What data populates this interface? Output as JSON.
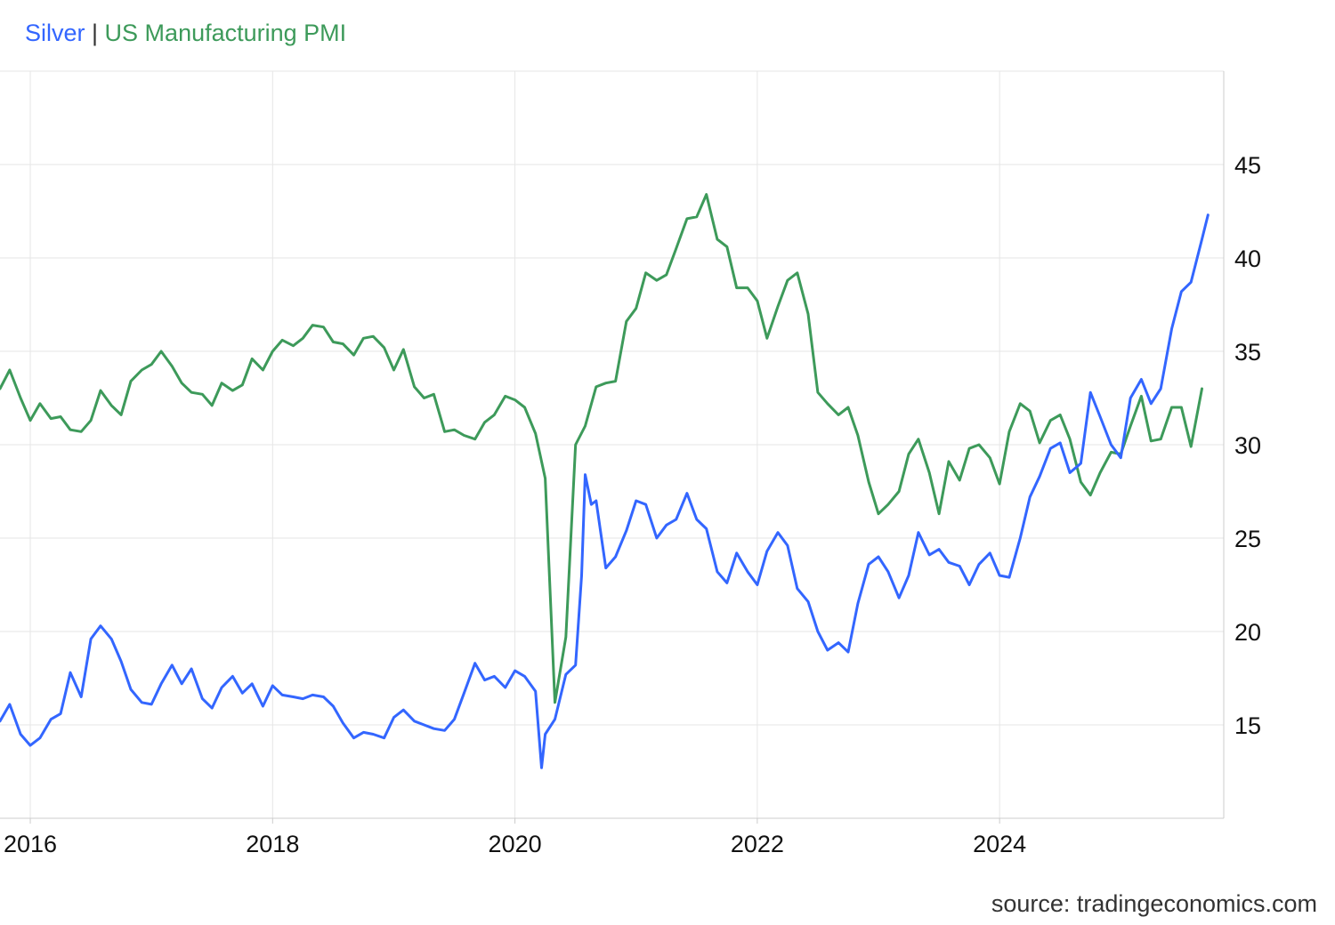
{
  "chart_data": {
    "type": "line",
    "title_parts": [
      "Silver",
      " | ",
      "US Manufacturing PMI"
    ],
    "source": "source: tradingeconomics.com",
    "x_tick_labels": [
      "2016",
      "2018",
      "2020",
      "2022",
      "2024"
    ],
    "x_tick_years": [
      2016,
      2018,
      2020,
      2022,
      2024
    ],
    "y_tick_labels": [
      "15",
      "20",
      "25",
      "30",
      "35",
      "40",
      "45"
    ],
    "y_ticks": [
      15,
      20,
      25,
      30,
      35,
      40,
      45
    ],
    "xlim": [
      2015.75,
      2025.85
    ],
    "ylim": [
      10,
      50
    ],
    "grid": true,
    "y_axis_side": "right",
    "series": [
      {
        "name": "Silver",
        "color": "#3366ff",
        "points": [
          [
            2015.75,
            15.2
          ],
          [
            2015.83,
            16.1
          ],
          [
            2015.92,
            14.5
          ],
          [
            2016.0,
            13.9
          ],
          [
            2016.08,
            14.3
          ],
          [
            2016.17,
            15.3
          ],
          [
            2016.25,
            15.6
          ],
          [
            2016.33,
            17.8
          ],
          [
            2016.42,
            16.5
          ],
          [
            2016.5,
            19.6
          ],
          [
            2016.58,
            20.3
          ],
          [
            2016.67,
            19.6
          ],
          [
            2016.75,
            18.4
          ],
          [
            2016.83,
            16.9
          ],
          [
            2016.92,
            16.2
          ],
          [
            2017.0,
            16.1
          ],
          [
            2017.08,
            17.2
          ],
          [
            2017.17,
            18.2
          ],
          [
            2017.25,
            17.2
          ],
          [
            2017.33,
            18.0
          ],
          [
            2017.42,
            16.4
          ],
          [
            2017.5,
            15.9
          ],
          [
            2017.58,
            17.0
          ],
          [
            2017.67,
            17.6
          ],
          [
            2017.75,
            16.7
          ],
          [
            2017.83,
            17.2
          ],
          [
            2017.92,
            16.0
          ],
          [
            2018.0,
            17.1
          ],
          [
            2018.08,
            16.6
          ],
          [
            2018.17,
            16.5
          ],
          [
            2018.25,
            16.4
          ],
          [
            2018.33,
            16.6
          ],
          [
            2018.42,
            16.5
          ],
          [
            2018.5,
            16.0
          ],
          [
            2018.58,
            15.1
          ],
          [
            2018.67,
            14.3
          ],
          [
            2018.75,
            14.6
          ],
          [
            2018.83,
            14.5
          ],
          [
            2018.92,
            14.3
          ],
          [
            2019.0,
            15.4
          ],
          [
            2019.08,
            15.8
          ],
          [
            2019.17,
            15.2
          ],
          [
            2019.25,
            15.0
          ],
          [
            2019.33,
            14.8
          ],
          [
            2019.42,
            14.7
          ],
          [
            2019.5,
            15.3
          ],
          [
            2019.58,
            16.7
          ],
          [
            2019.67,
            18.3
          ],
          [
            2019.75,
            17.4
          ],
          [
            2019.83,
            17.6
          ],
          [
            2019.92,
            17.0
          ],
          [
            2020.0,
            17.9
          ],
          [
            2020.08,
            17.6
          ],
          [
            2020.17,
            16.8
          ],
          [
            2020.22,
            12.7
          ],
          [
            2020.25,
            14.5
          ],
          [
            2020.33,
            15.3
          ],
          [
            2020.42,
            17.7
          ],
          [
            2020.5,
            18.2
          ],
          [
            2020.55,
            23.0
          ],
          [
            2020.58,
            28.4
          ],
          [
            2020.63,
            26.8
          ],
          [
            2020.67,
            27.0
          ],
          [
            2020.75,
            23.4
          ],
          [
            2020.83,
            24.0
          ],
          [
            2020.92,
            25.4
          ],
          [
            2021.0,
            27.0
          ],
          [
            2021.08,
            26.8
          ],
          [
            2021.17,
            25.0
          ],
          [
            2021.25,
            25.7
          ],
          [
            2021.33,
            26.0
          ],
          [
            2021.42,
            27.4
          ],
          [
            2021.5,
            26.0
          ],
          [
            2021.58,
            25.5
          ],
          [
            2021.67,
            23.2
          ],
          [
            2021.75,
            22.6
          ],
          [
            2021.83,
            24.2
          ],
          [
            2021.92,
            23.2
          ],
          [
            2022.0,
            22.5
          ],
          [
            2022.08,
            24.3
          ],
          [
            2022.17,
            25.3
          ],
          [
            2022.25,
            24.6
          ],
          [
            2022.33,
            22.3
          ],
          [
            2022.42,
            21.6
          ],
          [
            2022.5,
            20.0
          ],
          [
            2022.58,
            19.0
          ],
          [
            2022.67,
            19.4
          ],
          [
            2022.75,
            18.9
          ],
          [
            2022.83,
            21.5
          ],
          [
            2022.92,
            23.6
          ],
          [
            2023.0,
            24.0
          ],
          [
            2023.08,
            23.2
          ],
          [
            2023.17,
            21.8
          ],
          [
            2023.25,
            23.0
          ],
          [
            2023.33,
            25.3
          ],
          [
            2023.42,
            24.1
          ],
          [
            2023.5,
            24.4
          ],
          [
            2023.58,
            23.7
          ],
          [
            2023.67,
            23.5
          ],
          [
            2023.75,
            22.5
          ],
          [
            2023.83,
            23.6
          ],
          [
            2023.92,
            24.2
          ],
          [
            2024.0,
            23.0
          ],
          [
            2024.08,
            22.9
          ],
          [
            2024.17,
            25.0
          ],
          [
            2024.25,
            27.2
          ],
          [
            2024.33,
            28.3
          ],
          [
            2024.42,
            29.8
          ],
          [
            2024.5,
            30.1
          ],
          [
            2024.58,
            28.5
          ],
          [
            2024.67,
            29.0
          ],
          [
            2024.75,
            32.8
          ],
          [
            2024.83,
            31.5
          ],
          [
            2024.92,
            30.0
          ],
          [
            2025.0,
            29.3
          ],
          [
            2025.08,
            32.5
          ],
          [
            2025.17,
            33.5
          ],
          [
            2025.25,
            32.2
          ],
          [
            2025.33,
            33.0
          ],
          [
            2025.42,
            36.2
          ],
          [
            2025.5,
            38.2
          ],
          [
            2025.58,
            38.7
          ],
          [
            2025.67,
            41.0
          ],
          [
            2025.72,
            42.3
          ]
        ]
      },
      {
        "name": "US Manufacturing PMI",
        "color": "#3d9a5a",
        "points": [
          [
            2015.75,
            33.0
          ],
          [
            2015.83,
            34.0
          ],
          [
            2015.92,
            32.5
          ],
          [
            2016.0,
            31.3
          ],
          [
            2016.08,
            32.2
          ],
          [
            2016.17,
            31.4
          ],
          [
            2016.25,
            31.5
          ],
          [
            2016.33,
            30.8
          ],
          [
            2016.42,
            30.7
          ],
          [
            2016.5,
            31.3
          ],
          [
            2016.58,
            32.9
          ],
          [
            2016.67,
            32.1
          ],
          [
            2016.75,
            31.6
          ],
          [
            2016.83,
            33.4
          ],
          [
            2016.92,
            34.0
          ],
          [
            2017.0,
            34.3
          ],
          [
            2017.08,
            35.0
          ],
          [
            2017.17,
            34.2
          ],
          [
            2017.25,
            33.3
          ],
          [
            2017.33,
            32.8
          ],
          [
            2017.42,
            32.7
          ],
          [
            2017.5,
            32.1
          ],
          [
            2017.58,
            33.3
          ],
          [
            2017.67,
            32.9
          ],
          [
            2017.75,
            33.2
          ],
          [
            2017.83,
            34.6
          ],
          [
            2017.92,
            34.0
          ],
          [
            2018.0,
            35.0
          ],
          [
            2018.08,
            35.6
          ],
          [
            2018.17,
            35.3
          ],
          [
            2018.25,
            35.7
          ],
          [
            2018.33,
            36.4
          ],
          [
            2018.42,
            36.3
          ],
          [
            2018.5,
            35.5
          ],
          [
            2018.58,
            35.4
          ],
          [
            2018.67,
            34.8
          ],
          [
            2018.75,
            35.7
          ],
          [
            2018.83,
            35.8
          ],
          [
            2018.92,
            35.2
          ],
          [
            2019.0,
            34.0
          ],
          [
            2019.08,
            35.1
          ],
          [
            2019.17,
            33.1
          ],
          [
            2019.25,
            32.5
          ],
          [
            2019.33,
            32.7
          ],
          [
            2019.42,
            30.7
          ],
          [
            2019.5,
            30.8
          ],
          [
            2019.58,
            30.5
          ],
          [
            2019.67,
            30.3
          ],
          [
            2019.75,
            31.2
          ],
          [
            2019.83,
            31.6
          ],
          [
            2019.92,
            32.6
          ],
          [
            2020.0,
            32.4
          ],
          [
            2020.08,
            32.0
          ],
          [
            2020.17,
            30.6
          ],
          [
            2020.25,
            28.2
          ],
          [
            2020.33,
            16.2
          ],
          [
            2020.42,
            19.7
          ],
          [
            2020.5,
            30.0
          ],
          [
            2020.58,
            31.0
          ],
          [
            2020.67,
            33.1
          ],
          [
            2020.75,
            33.3
          ],
          [
            2020.83,
            33.4
          ],
          [
            2020.92,
            36.6
          ],
          [
            2021.0,
            37.3
          ],
          [
            2021.08,
            39.2
          ],
          [
            2021.17,
            38.8
          ],
          [
            2021.25,
            39.1
          ],
          [
            2021.33,
            40.5
          ],
          [
            2021.42,
            42.1
          ],
          [
            2021.5,
            42.2
          ],
          [
            2021.58,
            43.4
          ],
          [
            2021.67,
            41.0
          ],
          [
            2021.75,
            40.6
          ],
          [
            2021.83,
            38.4
          ],
          [
            2021.92,
            38.4
          ],
          [
            2022.0,
            37.7
          ],
          [
            2022.08,
            35.7
          ],
          [
            2022.17,
            37.4
          ],
          [
            2022.25,
            38.8
          ],
          [
            2022.33,
            39.2
          ],
          [
            2022.42,
            37.0
          ],
          [
            2022.5,
            32.8
          ],
          [
            2022.58,
            32.2
          ],
          [
            2022.67,
            31.6
          ],
          [
            2022.75,
            32.0
          ],
          [
            2022.83,
            30.5
          ],
          [
            2022.92,
            28.0
          ],
          [
            2023.0,
            26.3
          ],
          [
            2023.08,
            26.8
          ],
          [
            2023.17,
            27.5
          ],
          [
            2023.25,
            29.5
          ],
          [
            2023.33,
            30.3
          ],
          [
            2023.42,
            28.5
          ],
          [
            2023.5,
            26.3
          ],
          [
            2023.58,
            29.1
          ],
          [
            2023.67,
            28.1
          ],
          [
            2023.75,
            29.8
          ],
          [
            2023.83,
            30.0
          ],
          [
            2023.92,
            29.3
          ],
          [
            2024.0,
            27.9
          ],
          [
            2024.08,
            30.7
          ],
          [
            2024.17,
            32.2
          ],
          [
            2024.25,
            31.8
          ],
          [
            2024.33,
            30.1
          ],
          [
            2024.42,
            31.3
          ],
          [
            2024.5,
            31.6
          ],
          [
            2024.58,
            30.3
          ],
          [
            2024.67,
            28.0
          ],
          [
            2024.75,
            27.3
          ],
          [
            2024.83,
            28.5
          ],
          [
            2024.92,
            29.6
          ],
          [
            2025.0,
            29.5
          ],
          [
            2025.08,
            31.0
          ],
          [
            2025.17,
            32.6
          ],
          [
            2025.25,
            30.2
          ],
          [
            2025.33,
            30.3
          ],
          [
            2025.42,
            32.0
          ],
          [
            2025.5,
            32.0
          ],
          [
            2025.58,
            29.9
          ],
          [
            2025.67,
            33.0
          ]
        ]
      }
    ]
  }
}
